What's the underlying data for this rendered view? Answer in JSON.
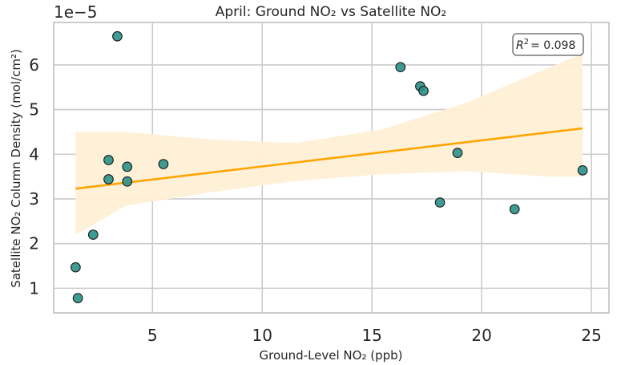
{
  "chart_data": {
    "type": "scatter",
    "title": "April: Ground NO₂ vs Satellite NO₂",
    "xlabel": "Ground-Level NO₂ (ppb)",
    "ylabel": "Satellite NO₂ Column Density (mol/cm²)",
    "y_offset_label": "1e−5",
    "xlim": [
      0.5,
      25.8
    ],
    "ylim": [
      0.45,
      6.95
    ],
    "x_ticks": [
      5,
      10,
      15,
      20,
      25
    ],
    "y_ticks": [
      1,
      2,
      3,
      4,
      5,
      6
    ],
    "grid": true,
    "points": [
      {
        "x": 1.5,
        "y": 1.47
      },
      {
        "x": 1.6,
        "y": 0.78
      },
      {
        "x": 2.3,
        "y": 2.2
      },
      {
        "x": 3.0,
        "y": 3.87
      },
      {
        "x": 3.0,
        "y": 3.44
      },
      {
        "x": 3.4,
        "y": 6.64
      },
      {
        "x": 3.85,
        "y": 3.72
      },
      {
        "x": 3.85,
        "y": 3.39
      },
      {
        "x": 5.5,
        "y": 3.78
      },
      {
        "x": 16.3,
        "y": 5.95
      },
      {
        "x": 17.2,
        "y": 5.52
      },
      {
        "x": 17.35,
        "y": 5.42
      },
      {
        "x": 18.1,
        "y": 2.92
      },
      {
        "x": 18.9,
        "y": 4.03
      },
      {
        "x": 21.5,
        "y": 2.77
      },
      {
        "x": 24.6,
        "y": 3.64
      }
    ],
    "regression": {
      "x": [
        1.5,
        24.6
      ],
      "y": [
        3.23,
        4.58
      ]
    },
    "confidence_band": {
      "x": [
        1.5,
        3.8,
        7.7,
        11.5,
        15.4,
        19.3,
        23.1,
        24.6
      ],
      "upper": [
        4.5,
        4.5,
        4.33,
        4.25,
        4.55,
        5.15,
        5.95,
        6.25
      ],
      "lower": [
        2.2,
        2.85,
        3.15,
        3.4,
        3.55,
        3.62,
        3.5,
        3.5
      ]
    },
    "annotation": {
      "r2_label": "= 0.098",
      "position": "top-right"
    },
    "colors": {
      "points": "#2a9188",
      "regression": "#ffa500",
      "band": "#ffefd6",
      "grid": "#cccccc"
    }
  }
}
